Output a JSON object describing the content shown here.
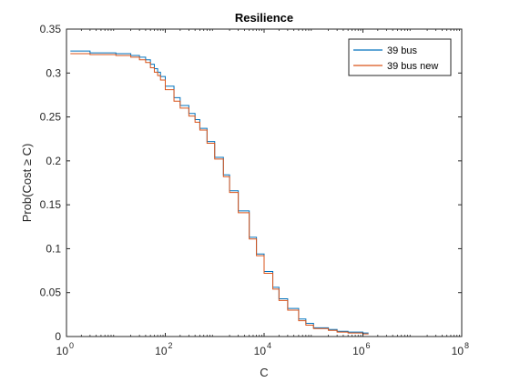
{
  "chart_data": {
    "type": "line",
    "title": "Resilience",
    "xlabel": "C",
    "ylabel": "Prob(Cost ≥ C)",
    "xscale": "log",
    "xlim": [
      1,
      100000000
    ],
    "ylim": [
      0,
      0.35
    ],
    "x_ticks": [
      {
        "value": 1,
        "base": "10",
        "exp": "0"
      },
      {
        "value": 100,
        "base": "10",
        "exp": "2"
      },
      {
        "value": 10000,
        "base": "10",
        "exp": "4"
      },
      {
        "value": 1000000,
        "base": "10",
        "exp": "6"
      },
      {
        "value": 100000000,
        "base": "10",
        "exp": "8"
      }
    ],
    "y_ticks": [
      {
        "value": 0,
        "label": "0"
      },
      {
        "value": 0.05,
        "label": "0.05"
      },
      {
        "value": 0.1,
        "label": "0.1"
      },
      {
        "value": 0.15,
        "label": "0.15"
      },
      {
        "value": 0.2,
        "label": "0.2"
      },
      {
        "value": 0.25,
        "label": "0.25"
      },
      {
        "value": 0.3,
        "label": "0.3"
      },
      {
        "value": 0.35,
        "label": "0.35"
      }
    ],
    "legend_position": "top-right",
    "grid": false,
    "series": [
      {
        "name": "39 bus",
        "color": "#0072BD",
        "x": [
          1.2,
          3,
          10,
          20,
          30,
          40,
          50,
          60,
          70,
          80,
          100,
          150,
          200,
          300,
          400,
          500,
          700,
          1000,
          1500,
          2000,
          3000,
          5000,
          7000,
          10000,
          15000,
          20000,
          30000,
          50000,
          70000,
          100000,
          200000,
          300000,
          500000,
          1000000,
          1300000
        ],
        "y": [
          0.325,
          0.323,
          0.322,
          0.32,
          0.318,
          0.315,
          0.31,
          0.305,
          0.301,
          0.296,
          0.285,
          0.272,
          0.263,
          0.254,
          0.247,
          0.237,
          0.222,
          0.204,
          0.184,
          0.166,
          0.143,
          0.113,
          0.094,
          0.074,
          0.056,
          0.043,
          0.032,
          0.02,
          0.015,
          0.01,
          0.008,
          0.006,
          0.005,
          0.004,
          0.004
        ]
      },
      {
        "name": "39 bus new",
        "color": "#D95319",
        "x": [
          1.2,
          3,
          10,
          20,
          30,
          40,
          50,
          60,
          70,
          80,
          100,
          150,
          200,
          300,
          400,
          500,
          700,
          1000,
          1500,
          2000,
          3000,
          5000,
          7000,
          10000,
          15000,
          20000,
          30000,
          50000,
          70000,
          100000,
          200000,
          300000,
          500000,
          1000000,
          1300000
        ],
        "y": [
          0.322,
          0.321,
          0.32,
          0.318,
          0.315,
          0.312,
          0.306,
          0.301,
          0.297,
          0.292,
          0.281,
          0.268,
          0.26,
          0.251,
          0.244,
          0.235,
          0.22,
          0.202,
          0.182,
          0.164,
          0.141,
          0.111,
          0.092,
          0.072,
          0.054,
          0.041,
          0.03,
          0.018,
          0.013,
          0.009,
          0.007,
          0.005,
          0.004,
          0.003,
          0.003
        ]
      }
    ]
  }
}
